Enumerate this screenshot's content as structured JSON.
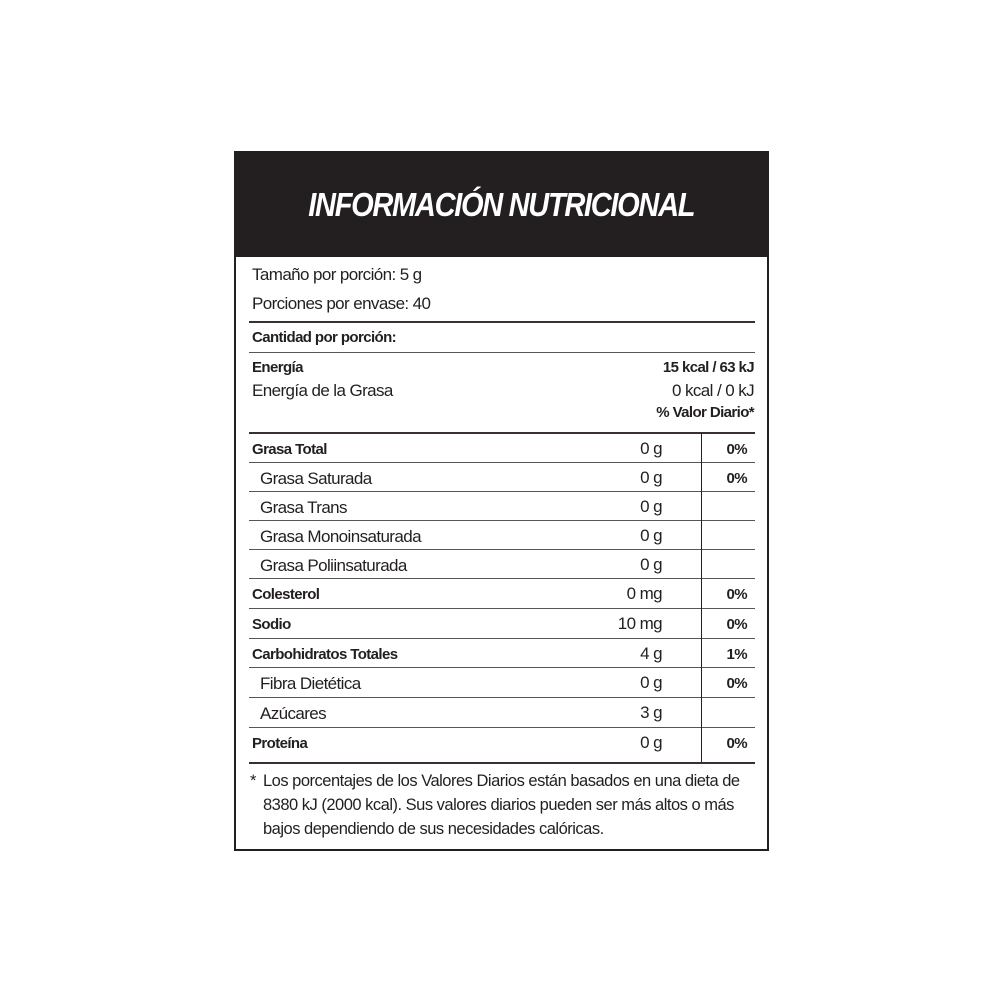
{
  "title": "INFORMACIÓN NUTRICIONAL",
  "serving": {
    "size": "Tamaño por porción: 5 g",
    "per_container": "Porciones por envase: 40"
  },
  "amount_header": "Cantidad por porción:",
  "energy": {
    "label": "Energía",
    "value": "15 kcal / 63 kJ",
    "fat_label": "Energía de la Grasa",
    "fat_value": "0 kcal / 0 kJ",
    "dv_header": "% Valor Diario*"
  },
  "nutrients": [
    {
      "name": "Grasa Total",
      "amount": "0 g",
      "dv": "0%",
      "bold": true
    },
    {
      "name": "Grasa Saturada",
      "amount": "0 g",
      "dv": "0%",
      "bold": false
    },
    {
      "name": "Grasa Trans",
      "amount": "0 g",
      "dv": "",
      "bold": false
    },
    {
      "name": "Grasa Monoinsaturada",
      "amount": "0 g",
      "dv": "",
      "bold": false
    },
    {
      "name": "Grasa Poliinsaturada",
      "amount": "0 g",
      "dv": "",
      "bold": false
    },
    {
      "name": "Colesterol",
      "amount": "0 mg",
      "dv": "0%",
      "bold": true
    },
    {
      "name": "Sodio",
      "amount": "10 mg",
      "dv": "0%",
      "bold": true
    },
    {
      "name": "Carbohidratos Totales",
      "amount": "4 g",
      "dv": "1%",
      "bold": true
    },
    {
      "name": "Fibra Dietética",
      "amount": "0 g",
      "dv": "0%",
      "bold": false
    },
    {
      "name": "Azúcares",
      "amount": "3 g",
      "dv": "",
      "bold": false
    },
    {
      "name": "Proteína",
      "amount": "0 g",
      "dv": "0%",
      "bold": true
    }
  ],
  "footnote": {
    "asterisk": "*",
    "text": "Los porcentajes  de los Valores Diarios están basados en una dieta de 8380 kJ (2000 kcal). Sus valores diarios pueden ser más altos o más bajos dependiendo de sus necesidades calóricas."
  }
}
